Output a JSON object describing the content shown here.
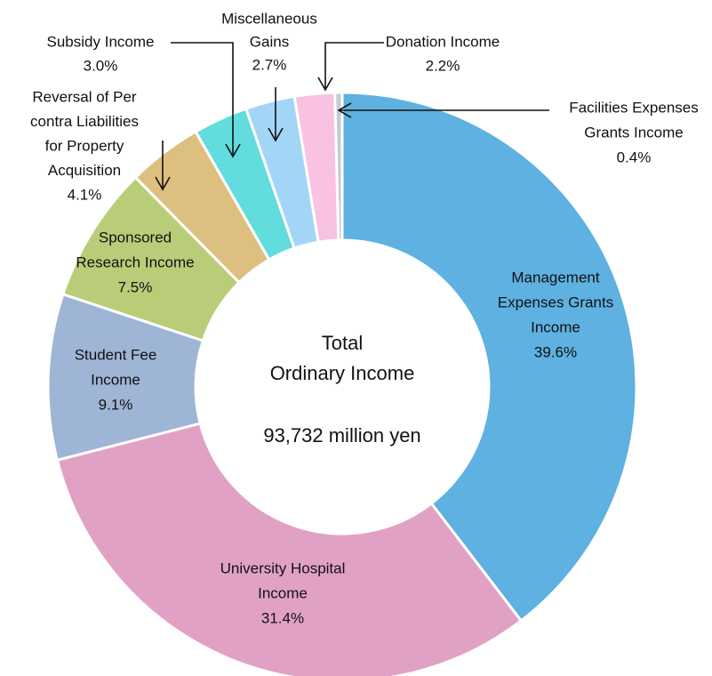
{
  "chart_data": {
    "type": "donut",
    "title": [
      "Total",
      "Ordinary Income"
    ],
    "total_label": "93,732 million yen",
    "categories": [
      [
        "Management",
        "Expenses Grants",
        "Income"
      ],
      [
        "University Hospital",
        "Income"
      ],
      [
        "Student Fee",
        "Income"
      ],
      [
        "Sponsored",
        "Research Income"
      ],
      [
        "Reversal of Per",
        "contra Liabilities",
        "for Property",
        "Acquisition"
      ],
      [
        "Subsidy Income"
      ],
      [
        "Miscellaneous",
        "Gains"
      ],
      [
        "Donation Income"
      ],
      [
        "Facilities Expenses",
        "Grants Income"
      ]
    ],
    "values": [
      39.6,
      31.4,
      9.1,
      7.5,
      4.1,
      3.0,
      2.7,
      2.2,
      0.4
    ],
    "value_labels": [
      "39.6%",
      "31.4%",
      "9.1%",
      "7.5%",
      "4.1%",
      "3.0%",
      "2.7%",
      "2.2%",
      "0.4%"
    ],
    "colors": [
      "#5eb1e1",
      "#e1a1c5",
      "#9fb5d5",
      "#b9cd78",
      "#ddc07f",
      "#62dcdc",
      "#a3d5f7",
      "#f9c2e2",
      "#c3cbd3"
    ]
  }
}
